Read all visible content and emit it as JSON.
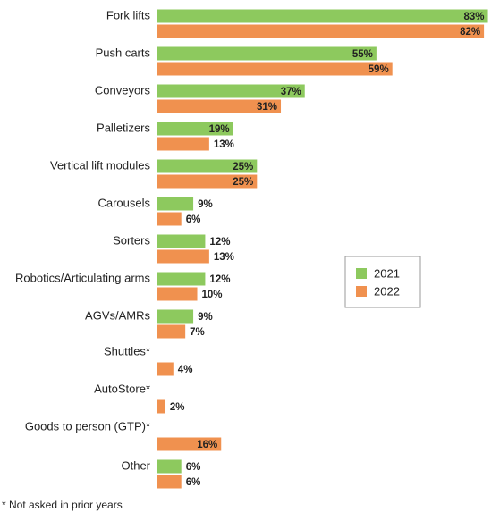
{
  "chart_data": {
    "type": "bar",
    "orientation": "horizontal",
    "categories": [
      "Fork lifts",
      "Push carts",
      "Conveyors",
      "Palletizers",
      "Vertical lift modules",
      "Carousels",
      "Sorters",
      "Robotics/Articulating arms",
      "AGVs/AMRs",
      "Shuttles*",
      "AutoStore*",
      "Goods to person (GTP)*",
      "Other"
    ],
    "series": [
      {
        "name": "2021",
        "color": "#8dc95e",
        "values": [
          83,
          55,
          37,
          19,
          25,
          9,
          12,
          12,
          9,
          null,
          null,
          null,
          6
        ],
        "value_labels": [
          "83%",
          "55%",
          "37%",
          "19%",
          "25%",
          "9%",
          "12%",
          "12%",
          "9%",
          null,
          null,
          null,
          "6%"
        ]
      },
      {
        "name": "2022",
        "color": "#f0914f",
        "values": [
          82,
          59,
          31,
          13,
          25,
          6,
          13,
          10,
          7,
          4,
          2,
          16,
          6
        ],
        "value_labels": [
          "82%",
          "59%",
          "31%",
          "13%",
          "25%",
          "6%",
          "13%",
          "10%",
          "7%",
          "4%",
          "2%",
          "16%",
          "6%"
        ]
      }
    ],
    "xlim": [
      0,
      84
    ],
    "footnote": "* Not asked in prior years"
  }
}
